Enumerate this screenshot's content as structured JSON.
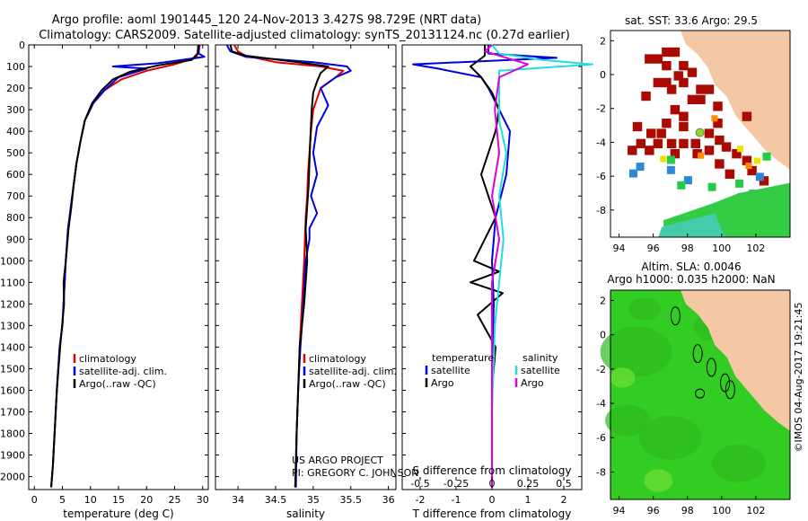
{
  "header": {
    "line1": "Argo profile: aoml 1901445_120 24-Nov-2013 3.427S 98.729E (NRT data)",
    "line2": "Climatology: CARS2009. Satellite-adjusted climatology: synTS_20131124.nc (0.27d earlier)"
  },
  "credits": {
    "project": "US ARGO PROJECT",
    "pi": "PI: GREGORY C. JOHNSON",
    "stamp": "©IMOS 04-Aug-2017 19:21:45"
  },
  "colors": {
    "climatology": "#dd0000",
    "satellite": "#0000dd",
    "argo": "#000000",
    "sat_diff": "#22dddd",
    "argo_diff_s": "#dd00dd",
    "land": "#f4c8a4",
    "ocean_green": "#33cc22"
  },
  "chart_data": [
    {
      "type": "line",
      "name": "temperature-profile",
      "xlabel": "temperature (deg C)",
      "ylabel": "",
      "xlim": [
        -1,
        31
      ],
      "ylim": [
        2060,
        0
      ],
      "xticks": [
        0,
        5,
        10,
        15,
        20,
        25,
        30
      ],
      "yticks": [
        0,
        100,
        200,
        300,
        400,
        500,
        600,
        700,
        800,
        900,
        1000,
        1100,
        1200,
        1300,
        1400,
        1500,
        1600,
        1700,
        1800,
        1900,
        2000
      ],
      "legend": [
        "climatology",
        "satellite-adj. clim.",
        "Argo(..raw -QC)"
      ],
      "legend_position": "lower-center",
      "series": [
        {
          "name": "climatology",
          "color": "#dd0000",
          "x": [
            29.5,
            29.3,
            28.8,
            25,
            20,
            15.5,
            12.5,
            10.5,
            9,
            8.2,
            7.5,
            7,
            6.5,
            6,
            5.6,
            5.3,
            5,
            4.5,
            4,
            3.6,
            3.3,
            3
          ],
          "y": [
            0,
            30,
            60,
            90,
            120,
            160,
            210,
            270,
            350,
            450,
            550,
            650,
            750,
            850,
            1000,
            1150,
            1300,
            1400,
            1600,
            1800,
            1950,
            2050
          ]
        },
        {
          "name": "satellite-adj. clim.",
          "color": "#0000dd",
          "x": [
            29.3,
            29.3,
            30.3,
            22,
            14,
            20,
            15,
            12.5,
            10.5,
            9,
            8.2,
            7.5,
            7,
            6.5,
            6,
            5.6,
            5.3,
            5,
            4.5,
            4,
            3.6,
            3.3,
            3
          ],
          "y": [
            0,
            40,
            55,
            85,
            100,
            110,
            150,
            210,
            270,
            350,
            450,
            550,
            650,
            750,
            850,
            1000,
            1150,
            1300,
            1400,
            1600,
            1800,
            1950,
            2050
          ]
        },
        {
          "name": "Argo(..raw -QC)",
          "color": "#000000",
          "x": [
            29.2,
            29.1,
            28,
            22,
            17,
            14,
            12,
            10.3,
            9,
            8.2,
            7.5,
            7,
            6.6,
            6.1,
            5.6,
            5.2,
            5.3,
            4.6,
            4,
            3.6,
            3.3,
            3
          ],
          "y": [
            0,
            40,
            70,
            95,
            125,
            160,
            210,
            270,
            350,
            450,
            550,
            650,
            750,
            850,
            1000,
            1100,
            1200,
            1400,
            1600,
            1800,
            1950,
            2050
          ]
        }
      ]
    },
    {
      "type": "line",
      "name": "salinity-profile",
      "xlabel": "salinity",
      "ylabel": "",
      "xlim": [
        33.7,
        36.1
      ],
      "ylim": [
        2060,
        0
      ],
      "xticks": [
        34,
        34.5,
        35,
        35.5,
        36
      ],
      "legend": [
        "climatology",
        "satellite-adj. clim.",
        "Argo(..raw -QC)"
      ],
      "legend_position": "lower-center",
      "series": [
        {
          "name": "climatology",
          "color": "#dd0000",
          "x": [
            33.95,
            34.0,
            34.1,
            34.5,
            35.1,
            35.4,
            35.3,
            35.1,
            35.0,
            34.97,
            34.95,
            34.93,
            34.92,
            34.9,
            34.88,
            34.85,
            34.82,
            34.8,
            34.78,
            34.77,
            34.76
          ],
          "y": [
            0,
            30,
            50,
            80,
            100,
            120,
            150,
            200,
            300,
            400,
            500,
            600,
            700,
            800,
            1000,
            1200,
            1400,
            1600,
            1800,
            1950,
            2050
          ]
        },
        {
          "name": "satellite-adj. clim.",
          "color": "#0000dd",
          "x": [
            33.85,
            33.9,
            34.1,
            35.0,
            35.45,
            35.5,
            35.3,
            35.1,
            35.2,
            35.05,
            35.0,
            35.05,
            34.97,
            35.05,
            34.95,
            34.95,
            34.9,
            34.87,
            34.83,
            34.8,
            34.78,
            34.77
          ],
          "y": [
            0,
            30,
            55,
            80,
            100,
            120,
            150,
            200,
            280,
            380,
            500,
            600,
            700,
            780,
            850,
            900,
            1000,
            1200,
            1400,
            1600,
            1800,
            2050
          ]
        },
        {
          "name": "Argo(..raw -QC)",
          "color": "#000000",
          "x": [
            33.9,
            33.92,
            34.1,
            34.8,
            35.2,
            35.1,
            35.05,
            35.0,
            34.98,
            34.96,
            34.94,
            34.9,
            34.92,
            34.88,
            34.82,
            34.8,
            34.78,
            34.76
          ],
          "y": [
            0,
            30,
            50,
            80,
            100,
            130,
            170,
            220,
            300,
            450,
            650,
            850,
            1000,
            1200,
            1400,
            1600,
            1800,
            2050
          ]
        }
      ]
    },
    {
      "type": "line",
      "name": "difference-from-climatology",
      "xlabel": "T difference from climatology",
      "xlabel_top": "S difference from climatology",
      "xlim_T": [
        -2.5,
        2.5
      ],
      "xlim_S": [
        -0.625,
        0.625
      ],
      "ylim": [
        2060,
        0
      ],
      "xticks_T": [
        -2,
        -1,
        0,
        1,
        2
      ],
      "xticks_S": [
        -0.5,
        -0.25,
        0,
        0.25,
        0.5
      ],
      "xtick_labels_S": [
        "-0.5",
        "-0.25",
        "0",
        "0.25",
        "0.5"
      ],
      "legend_titles": [
        "temperature",
        "salinity"
      ],
      "legend": [
        {
          "group": "temperature",
          "label": "satellite",
          "color": "#0000dd"
        },
        {
          "group": "temperature",
          "label": "Argo",
          "color": "#000000"
        },
        {
          "group": "salinity",
          "label": "satellite",
          "color": "#22dddd"
        },
        {
          "group": "salinity",
          "label": "Argo",
          "color": "#dd00dd"
        }
      ],
      "legend_position": "lower-center",
      "series": [
        {
          "name": "T satellite",
          "color": "#0000dd",
          "x": [
            -0.1,
            -0.1,
            1.8,
            -2.2,
            -1.5,
            -0.3,
            -0.1,
            0.2,
            0.5,
            0.4,
            0.1,
            0.0,
            0.05,
            0.0,
            0.0
          ],
          "y": [
            0,
            40,
            60,
            90,
            110,
            150,
            200,
            300,
            400,
            600,
            800,
            1000,
            1200,
            1500,
            2050
          ]
        },
        {
          "name": "T Argo",
          "color": "#000000",
          "x": [
            -0.2,
            -0.2,
            -0.6,
            -0.3,
            0.0,
            0.2,
            0.1,
            -0.3,
            0.1,
            -0.5,
            0.2,
            -0.6,
            0.3,
            -0.4,
            0.1,
            0.0,
            0.0
          ],
          "y": [
            0,
            50,
            100,
            150,
            220,
            300,
            400,
            600,
            800,
            1000,
            1050,
            1100,
            1150,
            1250,
            1400,
            1600,
            2050
          ]
        },
        {
          "name": "S satellite",
          "color": "#22dddd",
          "x": [
            0.0,
            0.05,
            0.35,
            0.7,
            0.05,
            0.05,
            0.05,
            0.1,
            0.05,
            0.08,
            0.05,
            0.02,
            0.0,
            0.0
          ],
          "y": [
            0,
            40,
            70,
            90,
            120,
            200,
            350,
            500,
            700,
            900,
            1100,
            1300,
            1700,
            2050
          ]
        },
        {
          "name": "S Argo",
          "color": "#dd00dd",
          "x": [
            0.0,
            -0.05,
            0.25,
            0.05,
            0.02,
            0.05,
            0.0,
            0.05,
            0.0,
            0.0,
            0.0
          ],
          "y": [
            0,
            30,
            90,
            150,
            300,
            500,
            700,
            900,
            1100,
            1500,
            2050
          ]
        }
      ]
    }
  ],
  "maps": {
    "sst": {
      "title": "sat. SST: 33.6 Argo: 29.5",
      "xticks": [
        94,
        96,
        98,
        100,
        102
      ],
      "yticks": [
        2,
        0,
        -2,
        -4,
        -6,
        -8
      ],
      "profile_lon": 98.729,
      "profile_lat": -3.427
    },
    "sla": {
      "title_line1": "Altim. SLA: 0.0046",
      "title_line2": "Argo h1000: 0.035 h2000: NaN",
      "xticks": [
        94,
        96,
        98,
        100,
        102
      ],
      "yticks": [
        2,
        0,
        -2,
        -4,
        -6,
        -8
      ],
      "profile_lon": 98.729,
      "profile_lat": -3.427
    }
  }
}
